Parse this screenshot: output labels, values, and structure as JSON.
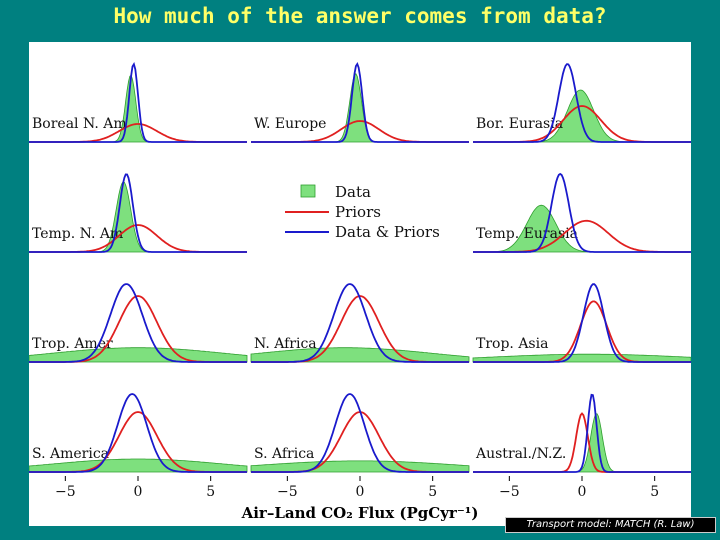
{
  "title": "How much of the answer comes from data?",
  "credit": "Transport model: MATCH (R. Law)",
  "colors": {
    "background": "#008080",
    "title": "#ffff66",
    "data_fill": "#7ee07e",
    "data_line": "#2e9e2e",
    "priors": "#e02020",
    "data_priors": "#1a1acc"
  },
  "chart_data": {
    "type": "area",
    "xlabel": "Air–Land CO₂ Flux (PgCyr⁻¹)",
    "xticks": [
      -5,
      0,
      5
    ],
    "xlim": [
      -7.5,
      7.5
    ],
    "legend": {
      "placement": "center",
      "entries": [
        {
          "label": "Data",
          "style": "filled"
        },
        {
          "label": "Priors",
          "style": "line"
        },
        {
          "label": "Data & Priors",
          "style": "line"
        }
      ]
    },
    "regions": [
      {
        "name": "Boreal N. Am",
        "data": {
          "mean": -0.5,
          "sd": 0.35
        },
        "priors": {
          "mean": 0.0,
          "sd": 1.3
        },
        "data_priors": {
          "mean": -0.3,
          "sd": 0.3
        }
      },
      {
        "name": "W. Europe",
        "data": {
          "mean": -0.3,
          "sd": 0.4
        },
        "priors": {
          "mean": 0.0,
          "sd": 1.3
        },
        "data_priors": {
          "mean": -0.2,
          "sd": 0.35
        }
      },
      {
        "name": "Bor. Eurasia",
        "data": {
          "mean": -0.1,
          "sd": 0.9
        },
        "priors": {
          "mean": 0.0,
          "sd": 1.3
        },
        "data_priors": {
          "mean": -1.0,
          "sd": 0.6
        }
      },
      {
        "name": "Temp. N. Am",
        "data": {
          "mean": -1.0,
          "sd": 0.5
        },
        "priors": {
          "mean": 0.0,
          "sd": 1.3
        },
        "data_priors": {
          "mean": -0.8,
          "sd": 0.45
        }
      },
      {
        "name": "Temp. Eurasia",
        "data": {
          "mean": -2.8,
          "sd": 1.0
        },
        "priors": {
          "mean": 0.3,
          "sd": 1.5
        },
        "data_priors": {
          "mean": -1.5,
          "sd": 0.6
        }
      },
      {
        "name": "Trop. Amer",
        "data": {
          "mean": 0.0,
          "sd": 6.0
        },
        "priors": {
          "mean": 0.0,
          "sd": 1.3
        },
        "data_priors": {
          "mean": -0.8,
          "sd": 1.1
        }
      },
      {
        "name": "N. Africa",
        "data": {
          "mean": -1.0,
          "sd": 6.0
        },
        "priors": {
          "mean": 0.0,
          "sd": 1.3
        },
        "data_priors": {
          "mean": -0.7,
          "sd": 1.1
        }
      },
      {
        "name": "Trop. Asia",
        "data": {
          "mean": 0.5,
          "sd": 7.0
        },
        "priors": {
          "mean": 0.8,
          "sd": 0.9
        },
        "data_priors": {
          "mean": 0.8,
          "sd": 0.7
        }
      },
      {
        "name": "S. America",
        "data": {
          "mean": 0.0,
          "sd": 6.0
        },
        "priors": {
          "mean": 0.0,
          "sd": 1.3
        },
        "data_priors": {
          "mean": -0.4,
          "sd": 1.0
        }
      },
      {
        "name": "S. Africa",
        "data": {
          "mean": 0.0,
          "sd": 7.0
        },
        "priors": {
          "mean": 0.0,
          "sd": 1.3
        },
        "data_priors": {
          "mean": -0.7,
          "sd": 1.0
        }
      },
      {
        "name": "Austral./N.Z.",
        "data": {
          "mean": 1.0,
          "sd": 0.4
        },
        "priors": {
          "mean": 0.0,
          "sd": 0.4
        },
        "data_priors": {
          "mean": 0.7,
          "sd": 0.3
        }
      }
    ]
  }
}
